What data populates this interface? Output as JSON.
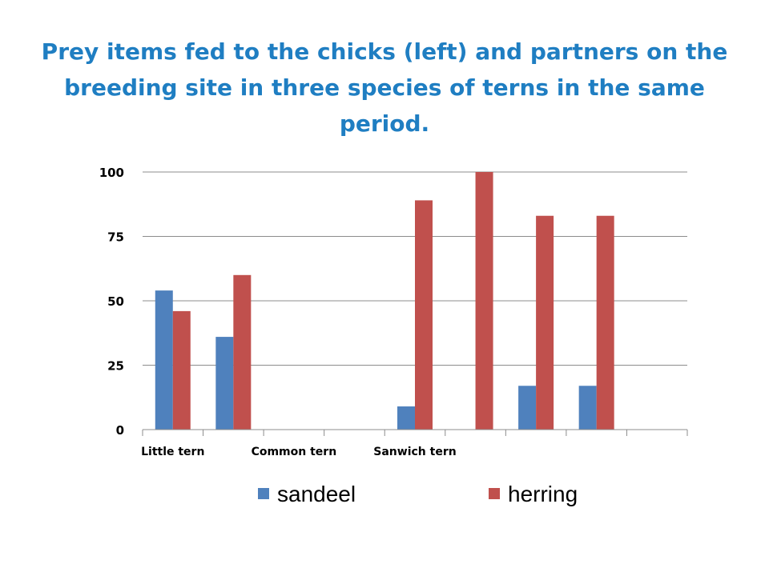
{
  "slide": {
    "title": "Prey items fed to the chicks (left)  and partners on the breeding site in three species of terns in the same period."
  },
  "colors": {
    "title": "#1f7ec2",
    "sandeel": "#4f81bd",
    "herring": "#c0504d",
    "gridline": "#8c8c8c"
  },
  "chart_data": {
    "type": "bar",
    "title": "",
    "xlabel": "",
    "ylabel": "",
    "ylim": [
      0,
      100
    ],
    "yticks": [
      0,
      25,
      50,
      75,
      100
    ],
    "grid": true,
    "legend_position": "bottom",
    "category_labels": [
      "Little tern",
      "",
      "Common tern",
      "",
      "Sanwich tern",
      ""
    ],
    "label_slots": [
      0,
      2,
      4
    ],
    "series": [
      {
        "name": "sandeel",
        "color": "#4f81bd",
        "values": [
          54,
          36,
          0,
          9,
          0,
          17,
          17,
          0
        ]
      },
      {
        "name": "herring",
        "color": "#c0504d",
        "values": [
          46,
          60,
          0,
          89,
          100,
          83,
          83,
          0
        ]
      }
    ],
    "slot_count": 9,
    "bar_slots": [
      0,
      1,
      3,
      4,
      5,
      6,
      7,
      8
    ]
  }
}
